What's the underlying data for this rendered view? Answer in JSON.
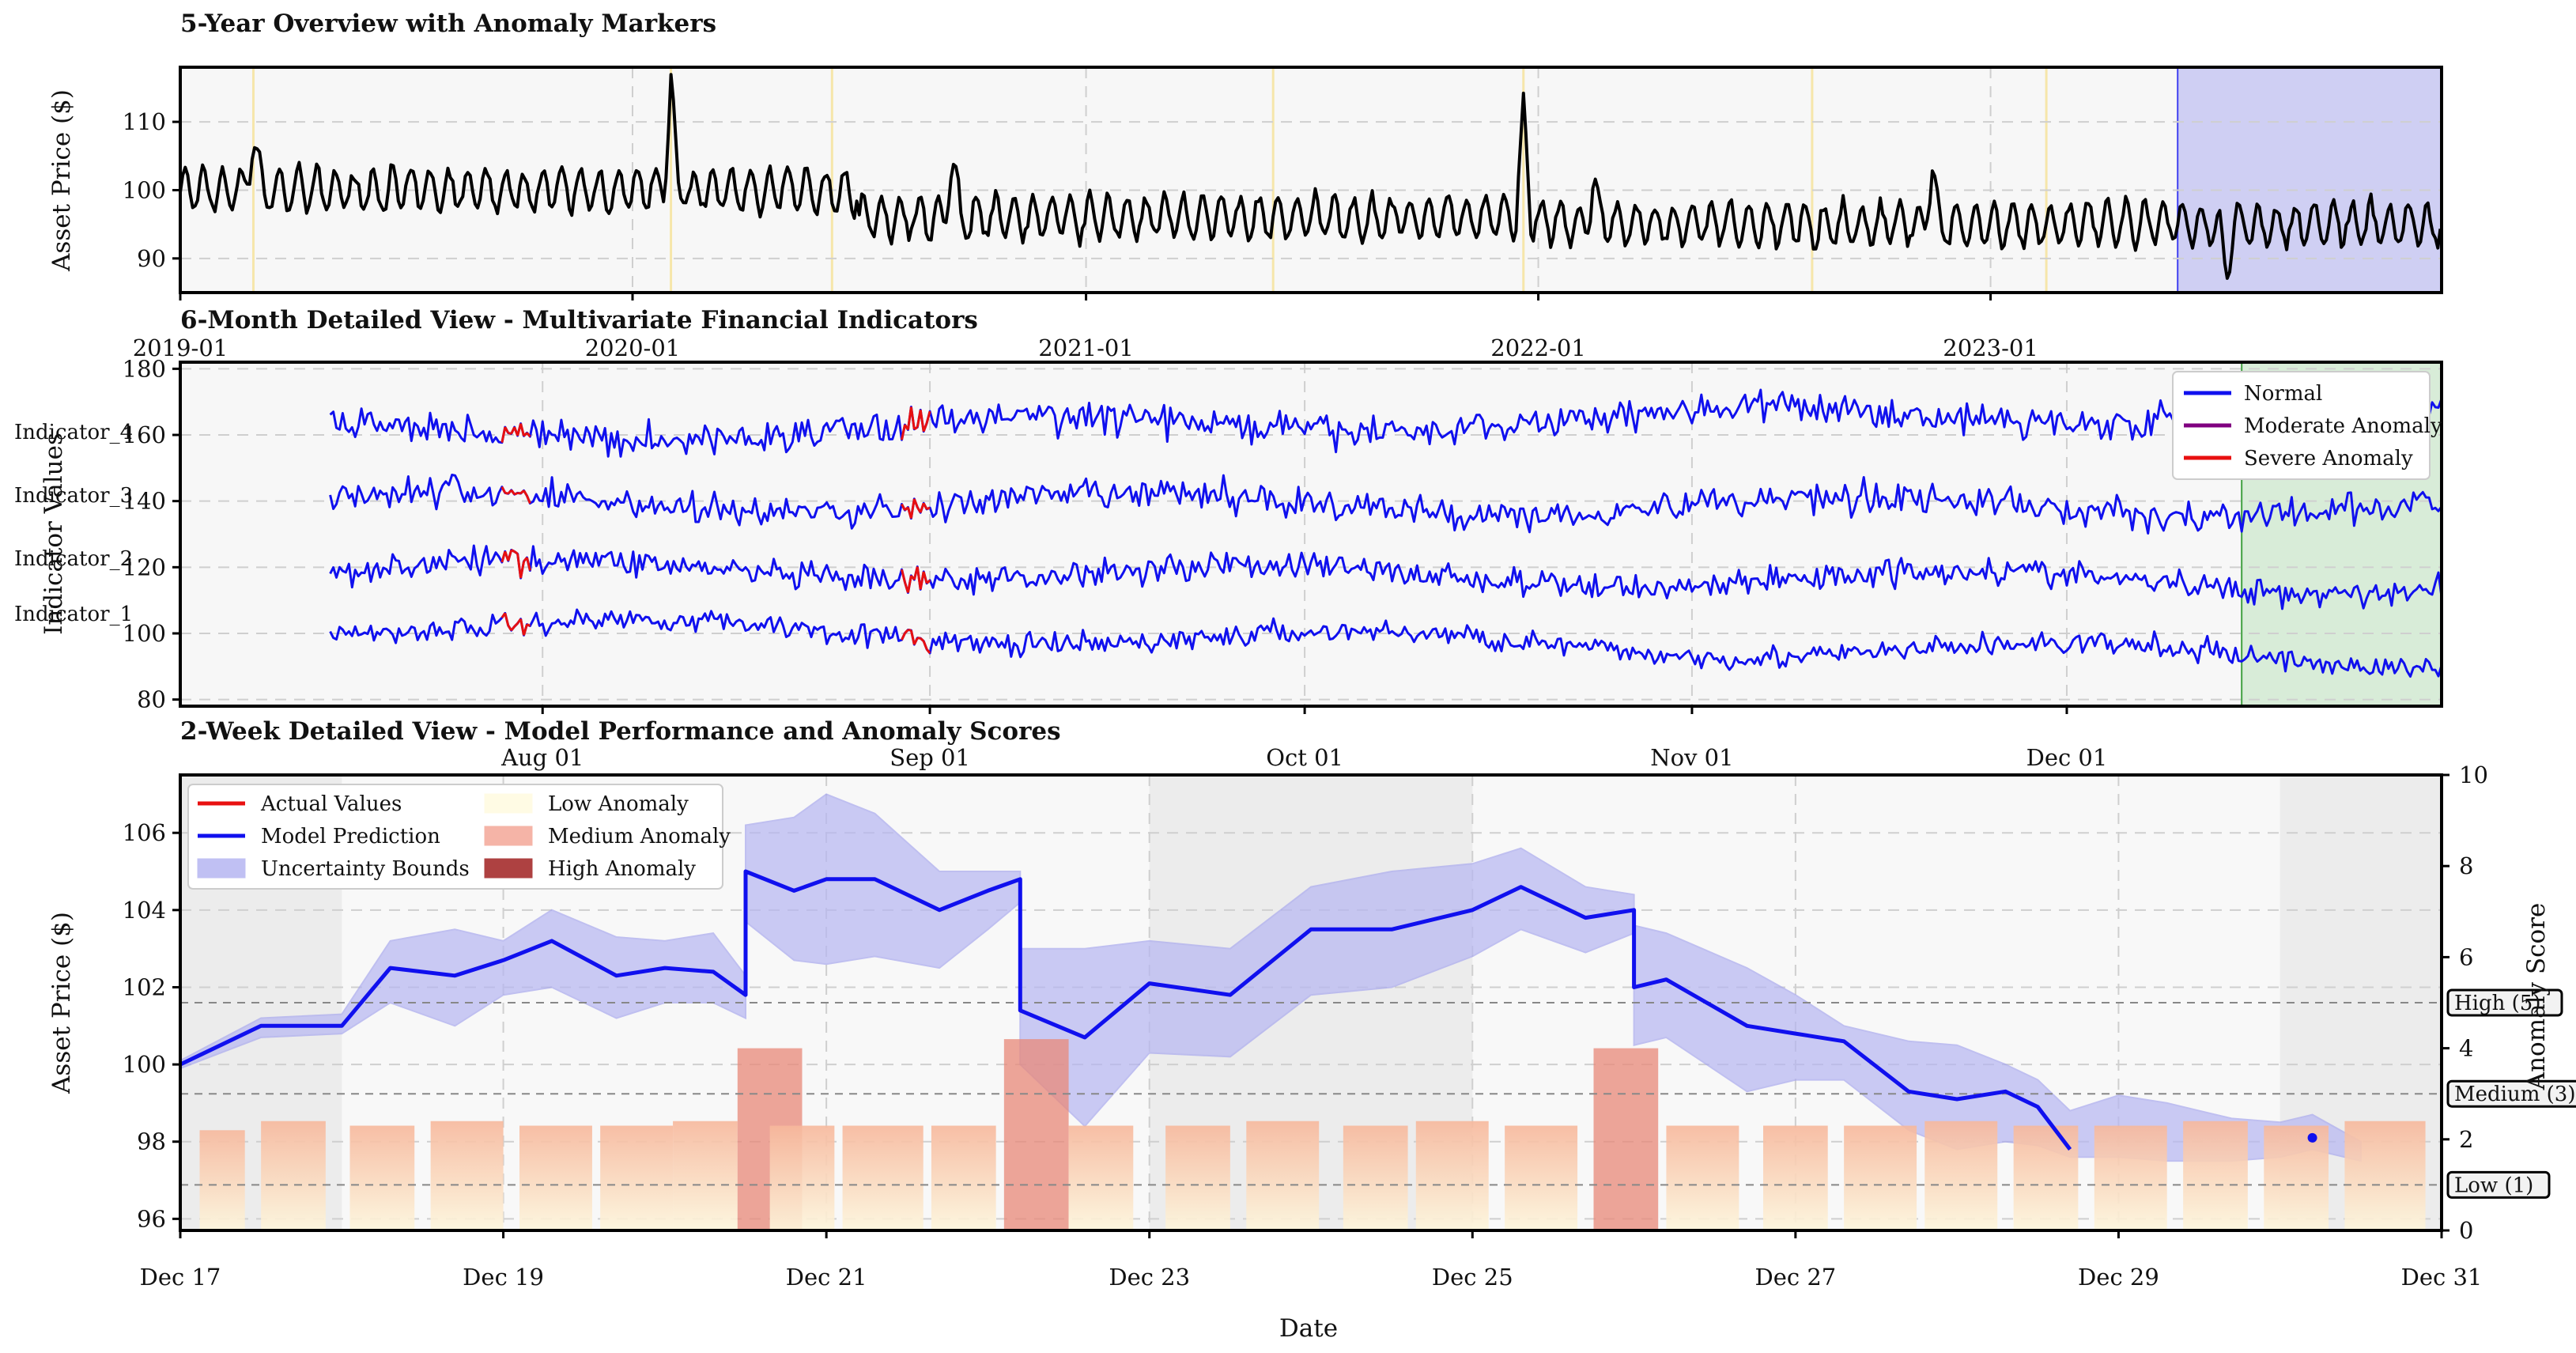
{
  "chart_data": [
    {
      "type": "line",
      "title": "5-Year Overview with Anomaly Markers",
      "ylabel": "Asset Price ($)",
      "xlabel": "",
      "x_ticks": [
        "2019-01",
        "2020-01",
        "2021-01",
        "2022-01",
        "2023-01"
      ],
      "y_ticks": [
        90,
        100,
        110
      ],
      "xlim": [
        "2019-01-01",
        "2023-12-31"
      ],
      "ylim": [
        85,
        118
      ],
      "grid": true,
      "series": [
        {
          "color": "#000000",
          "base_level": [
            {
              "x_start": "2019-01-01",
              "x_end": "2020-06-30",
              "value": 100
            },
            {
              "x_start": "2020-07-01",
              "x_end": "2021-12-31",
              "value": 96
            },
            {
              "x_start": "2022-01-01",
              "x_end": "2023-12-31",
              "value": 95
            }
          ],
          "oscillation_amplitude": 3,
          "oscillation_cycles_per_year": 24,
          "spikes": [
            {
              "x": "2019-03-01",
              "y": 109
            },
            {
              "x": "2020-02-01",
              "y": 116
            },
            {
              "x": "2020-09-15",
              "y": 105
            },
            {
              "x": "2021-12-20",
              "y": 111
            },
            {
              "x": "2022-02-15",
              "y": 101
            },
            {
              "x": "2022-11-15",
              "y": 103
            },
            {
              "x": "2023-07-10",
              "y": 88
            }
          ]
        }
      ],
      "anomaly_markers": [
        "2019-03-01",
        "2020-02-01",
        "2020-06-10",
        "2021-06-01",
        "2021-12-20",
        "2022-08-10",
        "2023-02-15"
      ],
      "highlight_span": {
        "x_start": "2023-06-01",
        "x_end": "2023-12-31",
        "color": "#c8c8f2"
      }
    },
    {
      "type": "line",
      "title": "6-Month Detailed View - Multivariate Financial Indicators",
      "ylabel": "Indicator Values",
      "x_ticks": [
        "Aug 01",
        "Sep 01",
        "Oct 01",
        "Nov 01",
        "Dec 01"
      ],
      "y_ticks": [
        80,
        100,
        120,
        140,
        160,
        180
      ],
      "xlim": [
        "2023-07-03",
        "2023-12-31"
      ],
      "ylim": [
        78,
        182
      ],
      "grid": true,
      "legend": {
        "position": "top-right",
        "entries": [
          {
            "label": "Normal",
            "color": "#1010ee"
          },
          {
            "label": "Moderate Anomaly",
            "color": "#800080"
          },
          {
            "label": "Severe Anomaly",
            "color": "#e81010"
          }
        ]
      },
      "series": [
        {
          "name": "Indicator_1",
          "start": 103,
          "end": 92,
          "noise": 5
        },
        {
          "name": "Indicator_2",
          "start": 120,
          "end": 115,
          "noise": 6
        },
        {
          "name": "Indicator_3",
          "start": 140,
          "end": 138,
          "noise": 7
        },
        {
          "name": "Indicator_4",
          "start": 160,
          "end": 168,
          "noise": 7
        }
      ],
      "severe_anomaly_dates": [
        "2023-07-30",
        "2023-08-31"
      ],
      "highlight_span": {
        "x_start": "2023-12-15",
        "x_end": "2023-12-31",
        "color": "#d8ecd8"
      }
    },
    {
      "type": "line",
      "title": "2-Week Detailed View - Model Performance and Anomaly Scores",
      "xlabel": "Date",
      "ylabel": "Asset Price ($)",
      "y2label": "Anomaly Score",
      "x_ticks": [
        "Dec 17",
        "Dec 19",
        "Dec 21",
        "Dec 23",
        "Dec 25",
        "Dec 27",
        "Dec 29",
        "Dec 31"
      ],
      "y_ticks": [
        96,
        98,
        100,
        102,
        104,
        106
      ],
      "y2_ticks": [
        0,
        2,
        4,
        6,
        8,
        10
      ],
      "xlim": [
        17,
        31
      ],
      "ylim": [
        95.7,
        107.5
      ],
      "y2lim": [
        0,
        10
      ],
      "grid": true,
      "legend": {
        "position": "top-left",
        "entries": [
          {
            "label": "Actual Values",
            "color": "#e81010",
            "kind": "line"
          },
          {
            "label": "Model Prediction",
            "color": "#1010ee",
            "kind": "line"
          },
          {
            "label": "Uncertainty Bounds",
            "color": "#b6b6f2",
            "kind": "patch"
          },
          {
            "label": "Low Anomaly",
            "color": "#fffbe0",
            "kind": "patch"
          },
          {
            "label": "Medium Anomaly",
            "color": "#f4a898",
            "kind": "patch"
          },
          {
            "label": "High Anomaly",
            "color": "#a02020",
            "kind": "patch"
          }
        ]
      },
      "thresholds": [
        {
          "label": "High (5)",
          "value": 5
        },
        {
          "label": "Medium (3)",
          "value": 3
        },
        {
          "label": "Low (1)",
          "value": 1
        }
      ],
      "prediction": {
        "x": [
          17.0,
          17.5,
          18.0,
          18.3,
          18.7,
          19.0,
          19.3,
          19.7,
          20.0,
          20.3,
          20.5,
          20.5,
          20.8,
          21.0,
          21.3,
          21.7,
          22.0,
          22.2,
          22.2,
          22.6,
          23.0,
          23.5,
          24.0,
          24.5,
          25.0,
          25.3,
          25.7,
          26.0,
          26.0,
          26.2,
          26.7,
          27.0,
          27.3,
          27.7,
          28.0,
          28.3,
          28.5,
          28.7
        ],
        "y": [
          100.0,
          101.0,
          101.0,
          102.5,
          102.3,
          102.7,
          103.2,
          102.3,
          102.5,
          102.4,
          101.8,
          105.0,
          104.5,
          104.8,
          104.8,
          104.0,
          104.5,
          104.8,
          101.4,
          100.7,
          102.1,
          101.8,
          103.5,
          103.5,
          104.0,
          104.6,
          103.8,
          104.0,
          102.0,
          102.2,
          101.0,
          100.8,
          100.6,
          99.3,
          99.1,
          99.3,
          98.9,
          97.8
        ],
        "tail_points": [
          {
            "x": 30.2,
            "y": 98.1
          }
        ]
      },
      "uncertainty_bounds": {
        "x": [
          17.0,
          17.5,
          18.0,
          18.3,
          18.7,
          19.0,
          19.3,
          19.7,
          20.0,
          20.3,
          20.5,
          20.5,
          20.8,
          21.0,
          21.3,
          21.7,
          22.0,
          22.2,
          22.2,
          22.6,
          23.0,
          23.5,
          24.0,
          24.5,
          25.0,
          25.3,
          25.7,
          26.0,
          26.0,
          26.2,
          26.7,
          27.0,
          27.3,
          27.7,
          28.0,
          28.3,
          28.5,
          28.7,
          29.0,
          29.3,
          29.7,
          30.0,
          30.2,
          30.5
        ],
        "upper": [
          100.1,
          101.2,
          101.3,
          103.2,
          103.5,
          103.2,
          104.0,
          103.3,
          103.2,
          103.4,
          102.3,
          106.2,
          106.4,
          107.0,
          106.5,
          105.0,
          105.0,
          105.0,
          103.0,
          103.0,
          103.2,
          103.0,
          104.6,
          105.0,
          105.2,
          105.6,
          104.6,
          104.4,
          103.6,
          103.4,
          102.5,
          101.8,
          101.0,
          100.6,
          100.5,
          100.0,
          99.6,
          98.8,
          99.2,
          99.0,
          98.6,
          98.5,
          98.7,
          98.0
        ],
        "lower": [
          99.9,
          100.7,
          100.8,
          101.6,
          101.0,
          101.8,
          102.0,
          101.2,
          101.6,
          101.6,
          101.2,
          103.7,
          102.7,
          102.6,
          102.8,
          102.5,
          103.5,
          104.2,
          100.0,
          98.4,
          100.3,
          100.2,
          101.8,
          102.0,
          102.8,
          103.5,
          102.9,
          103.4,
          100.5,
          100.7,
          99.3,
          99.6,
          99.6,
          98.3,
          97.8,
          98.0,
          97.9,
          97.6,
          97.6,
          97.5,
          97.5,
          97.6,
          97.8,
          97.5
        ]
      },
      "anomaly_scores": [
        {
          "x": 17.12,
          "w": 0.28,
          "score": 2.2,
          "level": "low"
        },
        {
          "x": 17.5,
          "w": 0.4,
          "score": 2.4,
          "level": "low"
        },
        {
          "x": 18.05,
          "w": 0.4,
          "score": 2.3,
          "level": "low"
        },
        {
          "x": 18.55,
          "w": 0.45,
          "score": 2.4,
          "level": "low"
        },
        {
          "x": 19.1,
          "w": 0.45,
          "score": 2.3,
          "level": "low"
        },
        {
          "x": 19.6,
          "w": 0.45,
          "score": 2.3,
          "level": "low"
        },
        {
          "x": 20.05,
          "w": 0.4,
          "score": 2.4,
          "level": "low"
        },
        {
          "x": 20.45,
          "w": 0.4,
          "score": 4.0,
          "level": "medium"
        },
        {
          "x": 20.65,
          "w": 0.4,
          "score": 2.3,
          "level": "low"
        },
        {
          "x": 21.1,
          "w": 0.5,
          "score": 2.3,
          "level": "low"
        },
        {
          "x": 21.65,
          "w": 0.4,
          "score": 2.3,
          "level": "low"
        },
        {
          "x": 22.1,
          "w": 0.4,
          "score": 4.2,
          "level": "medium"
        },
        {
          "x": 22.5,
          "w": 0.4,
          "score": 2.3,
          "level": "low"
        },
        {
          "x": 23.1,
          "w": 0.4,
          "score": 2.3,
          "level": "low"
        },
        {
          "x": 23.6,
          "w": 0.45,
          "score": 2.4,
          "level": "low"
        },
        {
          "x": 24.2,
          "w": 0.4,
          "score": 2.3,
          "level": "low"
        },
        {
          "x": 24.65,
          "w": 0.45,
          "score": 2.4,
          "level": "low"
        },
        {
          "x": 25.2,
          "w": 0.45,
          "score": 2.3,
          "level": "low"
        },
        {
          "x": 25.75,
          "w": 0.4,
          "score": 4.0,
          "level": "medium"
        },
        {
          "x": 26.2,
          "w": 0.45,
          "score": 2.3,
          "level": "low"
        },
        {
          "x": 26.8,
          "w": 0.4,
          "score": 2.3,
          "level": "low"
        },
        {
          "x": 27.3,
          "w": 0.45,
          "score": 2.3,
          "level": "low"
        },
        {
          "x": 27.8,
          "w": 0.45,
          "score": 2.4,
          "level": "low"
        },
        {
          "x": 28.35,
          "w": 0.4,
          "score": 2.3,
          "level": "low"
        },
        {
          "x": 28.85,
          "w": 0.45,
          "score": 2.3,
          "level": "low"
        },
        {
          "x": 29.4,
          "w": 0.4,
          "score": 2.4,
          "level": "low"
        },
        {
          "x": 29.9,
          "w": 0.4,
          "score": 2.3,
          "level": "low"
        },
        {
          "x": 30.4,
          "w": 0.5,
          "score": 2.4,
          "level": "low"
        }
      ],
      "shaded_regions": [
        {
          "x_start": 17.0,
          "x_end": 18.0
        },
        {
          "x_start": 23.0,
          "x_end": 25.0
        },
        {
          "x_start": 30.0,
          "x_end": 31.0
        }
      ]
    }
  ]
}
